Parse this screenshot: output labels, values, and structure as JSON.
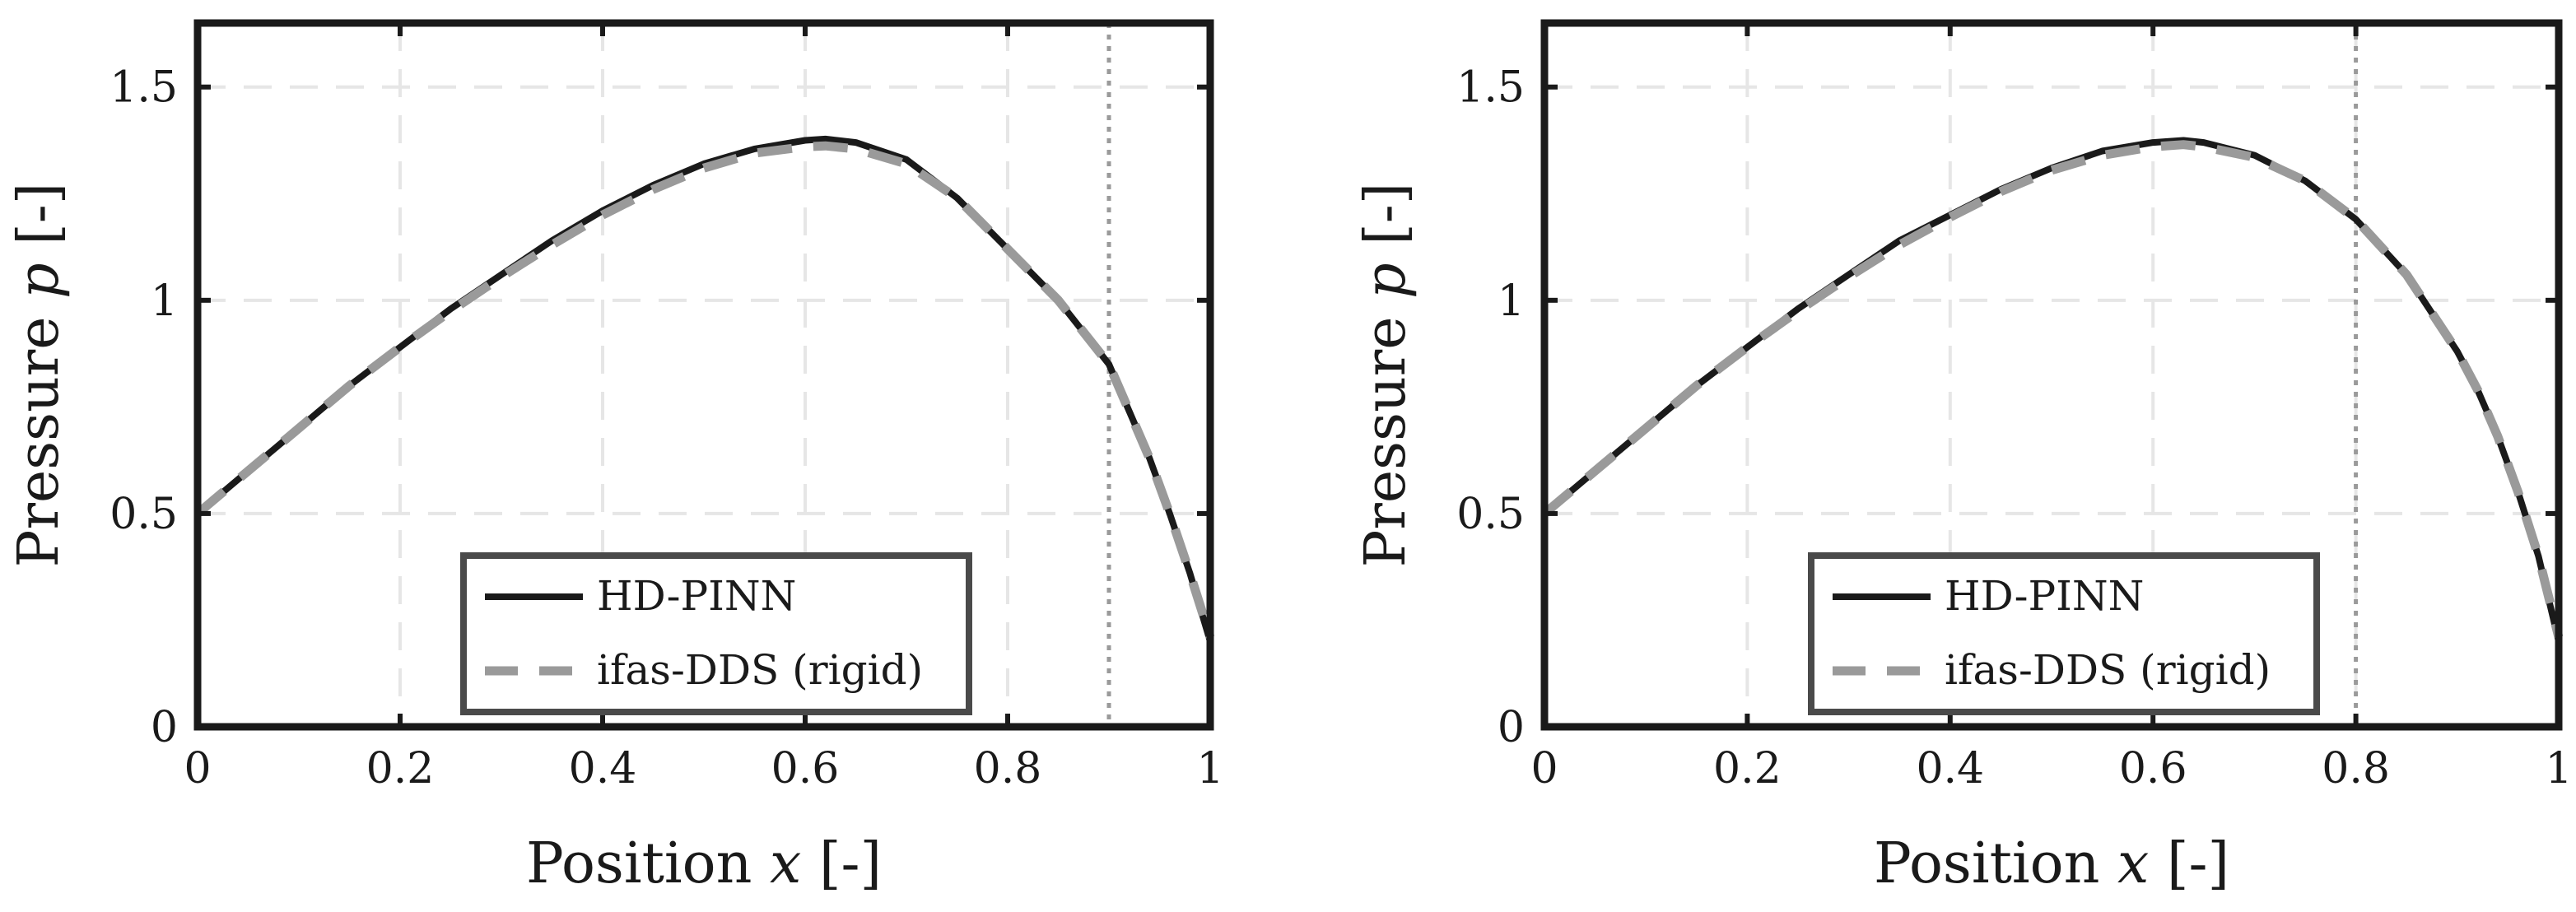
{
  "chart_data": [
    {
      "type": "line",
      "xlabel_text": "Position",
      "xlabel_var": "x",
      "xlabel_unit": "[-]",
      "ylabel_text": "Pressure",
      "ylabel_var": "p",
      "ylabel_unit": "[-]",
      "xlim": [
        0,
        1
      ],
      "ylim": [
        0,
        1.65
      ],
      "xticks": [
        0,
        0.2,
        0.4,
        0.6,
        0.8,
        1
      ],
      "xtick_labels": [
        "0",
        "0.2",
        "0.4",
        "0.6",
        "0.8",
        "1"
      ],
      "yticks": [
        0,
        0.5,
        1,
        1.5
      ],
      "ytick_labels": [
        "0",
        "0.5",
        "1",
        "1.5"
      ],
      "grid": true,
      "legend_position": "bottom-center",
      "vline_x": 0.9,
      "series": [
        {
          "name": "HD-PINN",
          "color": "#1a1a1a",
          "style": "solid",
          "x": [
            0,
            0.05,
            0.1,
            0.15,
            0.2,
            0.25,
            0.3,
            0.35,
            0.4,
            0.45,
            0.5,
            0.55,
            0.6,
            0.62,
            0.65,
            0.7,
            0.75,
            0.8,
            0.85,
            0.9,
            0.92,
            0.94,
            0.96,
            0.98,
            1
          ],
          "y": [
            0.5,
            0.6,
            0.7,
            0.8,
            0.89,
            0.98,
            1.06,
            1.14,
            1.21,
            1.27,
            1.32,
            1.355,
            1.375,
            1.378,
            1.37,
            1.33,
            1.24,
            1.12,
            1.0,
            0.85,
            0.74,
            0.63,
            0.5,
            0.36,
            0.2
          ]
        },
        {
          "name": "ifas-DDS (rigid)",
          "color": "#9a9a9a",
          "style": "dashed",
          "x": [
            0,
            0.05,
            0.1,
            0.15,
            0.2,
            0.25,
            0.3,
            0.35,
            0.4,
            0.45,
            0.5,
            0.55,
            0.6,
            0.62,
            0.65,
            0.7,
            0.75,
            0.8,
            0.85,
            0.9,
            0.92,
            0.94,
            0.96,
            0.98,
            1
          ],
          "y": [
            0.5,
            0.6,
            0.7,
            0.8,
            0.89,
            0.975,
            1.055,
            1.13,
            1.2,
            1.26,
            1.31,
            1.345,
            1.36,
            1.362,
            1.355,
            1.32,
            1.24,
            1.12,
            1.0,
            0.85,
            0.74,
            0.63,
            0.5,
            0.36,
            0.21
          ]
        }
      ]
    },
    {
      "type": "line",
      "xlabel_text": "Position",
      "xlabel_var": "x",
      "xlabel_unit": "[-]",
      "ylabel_text": "Pressure",
      "ylabel_var": "p",
      "ylabel_unit": "[-]",
      "xlim": [
        0,
        1
      ],
      "ylim": [
        0,
        1.65
      ],
      "xticks": [
        0,
        0.2,
        0.4,
        0.6,
        0.8,
        1
      ],
      "xtick_labels": [
        "0",
        "0.2",
        "0.4",
        "0.6",
        "0.8",
        "1"
      ],
      "yticks": [
        0,
        0.5,
        1,
        1.5
      ],
      "ytick_labels": [
        "0",
        "0.5",
        "1",
        "1.5"
      ],
      "grid": true,
      "legend_position": "bottom-center",
      "vline_x": 0.8,
      "series": [
        {
          "name": "HD-PINN",
          "color": "#1a1a1a",
          "style": "solid",
          "x": [
            0,
            0.05,
            0.1,
            0.15,
            0.2,
            0.25,
            0.3,
            0.35,
            0.4,
            0.45,
            0.5,
            0.55,
            0.6,
            0.63,
            0.65,
            0.7,
            0.75,
            0.8,
            0.85,
            0.9,
            0.92,
            0.94,
            0.96,
            0.98,
            1
          ],
          "y": [
            0.5,
            0.6,
            0.7,
            0.8,
            0.89,
            0.98,
            1.06,
            1.14,
            1.2,
            1.26,
            1.31,
            1.35,
            1.37,
            1.375,
            1.37,
            1.34,
            1.28,
            1.19,
            1.06,
            0.88,
            0.79,
            0.68,
            0.55,
            0.4,
            0.2
          ]
        },
        {
          "name": "ifas-DDS (rigid)",
          "color": "#9a9a9a",
          "style": "dashed",
          "x": [
            0,
            0.05,
            0.1,
            0.15,
            0.2,
            0.25,
            0.3,
            0.35,
            0.4,
            0.45,
            0.5,
            0.55,
            0.6,
            0.63,
            0.65,
            0.7,
            0.75,
            0.8,
            0.85,
            0.9,
            0.92,
            0.94,
            0.96,
            0.98,
            1
          ],
          "y": [
            0.5,
            0.6,
            0.7,
            0.8,
            0.89,
            0.975,
            1.055,
            1.13,
            1.195,
            1.255,
            1.305,
            1.34,
            1.36,
            1.365,
            1.36,
            1.335,
            1.28,
            1.19,
            1.06,
            0.88,
            0.79,
            0.68,
            0.55,
            0.4,
            0.21
          ]
        }
      ]
    }
  ]
}
